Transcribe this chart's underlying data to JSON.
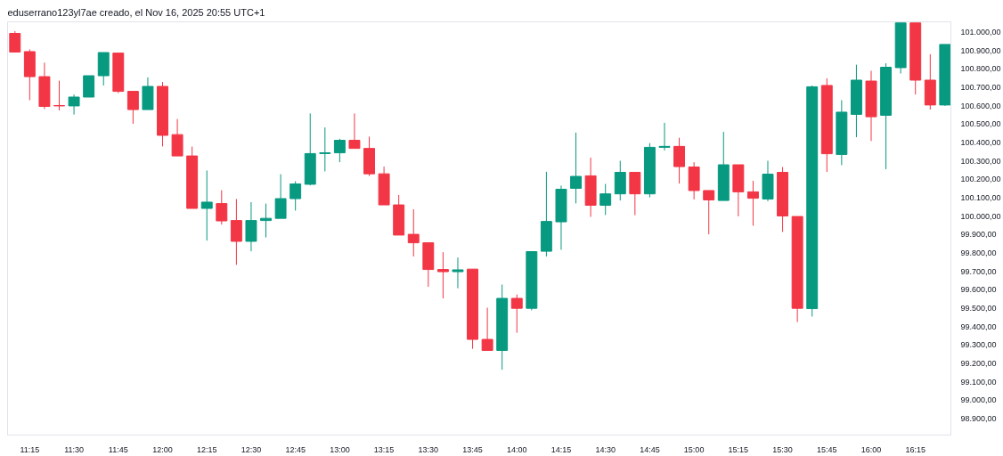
{
  "chart_data": {
    "type": "candlestick",
    "title": "eduserrano123yl7ae creado, el Nov 16, 2025 20:55 UTC+1",
    "categories": [
      null,
      "11:15",
      null,
      null,
      "11:30",
      null,
      null,
      "11:45",
      null,
      null,
      "12:00",
      null,
      null,
      "12:15",
      null,
      null,
      "12:30",
      null,
      null,
      "12:45",
      null,
      null,
      "13:00",
      null,
      null,
      "13:15",
      null,
      null,
      "13:30",
      null,
      null,
      "13:45",
      null,
      null,
      "14:00",
      null,
      null,
      "14:15",
      null,
      null,
      "14:30",
      null,
      null,
      "14:45",
      null,
      null,
      "15:00",
      null,
      null,
      "15:15",
      null,
      null,
      "15:30",
      null,
      null,
      "15:45",
      null,
      null,
      "16:00",
      null,
      null,
      "16:15",
      null,
      null
    ],
    "ohlc": [
      [
        100993,
        101005,
        100889,
        100892
      ],
      [
        100894,
        100906,
        100630,
        100758
      ],
      [
        100758,
        100834,
        100582,
        100596
      ],
      [
        100601,
        100736,
        100574,
        100599
      ],
      [
        100599,
        100661,
        100552,
        100647
      ],
      [
        100647,
        100763,
        100647,
        100763
      ],
      [
        100763,
        100889,
        100710,
        100889
      ],
      [
        100886,
        100886,
        100669,
        100678
      ],
      [
        100678,
        100678,
        100502,
        100579
      ],
      [
        100579,
        100754,
        100579,
        100705
      ],
      [
        100705,
        100729,
        100379,
        100439
      ],
      [
        100443,
        100528,
        100327,
        100327
      ],
      [
        100327,
        100378,
        100042,
        100042
      ],
      [
        100042,
        100248,
        99867,
        100076
      ],
      [
        100068,
        100141,
        99954,
        99974
      ],
      [
        99976,
        100093,
        99735,
        99863
      ],
      [
        99863,
        100076,
        99809,
        99976
      ],
      [
        99976,
        100068,
        99884,
        99988
      ],
      [
        99988,
        100228,
        99988,
        100095
      ],
      [
        100095,
        100190,
        100030,
        100175
      ],
      [
        100173,
        100558,
        100167,
        100340
      ],
      [
        100340,
        100482,
        100243,
        100344
      ],
      [
        100344,
        100420,
        100293,
        100412
      ],
      [
        100412,
        100558,
        100368,
        100368
      ],
      [
        100368,
        100432,
        100218,
        100230
      ],
      [
        100230,
        100269,
        100061,
        100061
      ],
      [
        100061,
        100115,
        99897,
        99897
      ],
      [
        99901,
        100037,
        99781,
        99855
      ],
      [
        99855,
        99855,
        99616,
        99710
      ],
      [
        99710,
        99804,
        99553,
        99698
      ],
      [
        99698,
        99775,
        99608,
        99708
      ],
      [
        99712,
        99712,
        99279,
        99330
      ],
      [
        99330,
        99502,
        99270,
        99270
      ],
      [
        99270,
        99628,
        99165,
        99553
      ],
      [
        99553,
        99574,
        99366,
        99499
      ],
      [
        99499,
        99807,
        99488,
        99807
      ],
      [
        99809,
        100241,
        99781,
        99971
      ],
      [
        99969,
        100166,
        99817,
        100146
      ],
      [
        100151,
        100454,
        100069,
        100216
      ],
      [
        100219,
        100318,
        99996,
        100059
      ],
      [
        100059,
        100175,
        100006,
        100121
      ],
      [
        100121,
        100301,
        100085,
        100238
      ],
      [
        100238,
        100238,
        100005,
        100121
      ],
      [
        100121,
        100397,
        100102,
        100374
      ],
      [
        100374,
        100507,
        100357,
        100379
      ],
      [
        100379,
        100426,
        100177,
        100269
      ],
      [
        100267,
        100293,
        100091,
        100139
      ],
      [
        100139,
        100139,
        99901,
        100088
      ],
      [
        100085,
        100458,
        100085,
        100279
      ],
      [
        100279,
        100279,
        99999,
        100132
      ],
      [
        100132,
        100192,
        99948,
        100097
      ],
      [
        100093,
        100301,
        100081,
        100228
      ],
      [
        100238,
        100267,
        99914,
        100001
      ],
      [
        99998,
        99998,
        99424,
        99499
      ],
      [
        99497,
        100710,
        99454,
        100703
      ],
      [
        100710,
        100749,
        100240,
        100339
      ],
      [
        100335,
        100630,
        100277,
        100565
      ],
      [
        100553,
        100823,
        100429,
        100739
      ],
      [
        100734,
        100790,
        100408,
        100540
      ],
      [
        100548,
        100831,
        100255,
        100809
      ],
      [
        100807,
        101050,
        100775,
        101050
      ],
      [
        101050,
        101050,
        100661,
        100739
      ],
      [
        100739,
        100880,
        100579,
        100604
      ],
      [
        100604,
        100933,
        100599,
        100933
      ]
    ],
    "colors": [
      "#f23645",
      "#f23645",
      "#f23645",
      "#f23645",
      "#089981",
      "#089981",
      "#089981",
      "#f23645",
      "#f23645",
      "#089981",
      "#f23645",
      "#f23645",
      "#f23645",
      "#089981",
      "#f23645",
      "#f23645",
      "#089981",
      "#089981",
      "#089981",
      "#089981",
      "#089981",
      "#089981",
      "#089981",
      "#f23645",
      "#f23645",
      "#f23645",
      "#f23645",
      "#f23645",
      "#f23645",
      "#f23645",
      "#089981",
      "#f23645",
      "#f23645",
      "#089981",
      "#f23645",
      "#089981",
      "#089981",
      "#089981",
      "#089981",
      "#f23645",
      "#089981",
      "#089981",
      "#f23645",
      "#089981",
      "#089981",
      "#f23645",
      "#f23645",
      "#f23645",
      "#089981",
      "#f23645",
      "#f23645",
      "#089981",
      "#f23645",
      "#f23645",
      "#089981",
      "#f23645",
      "#089981",
      "#089981",
      "#f23645",
      "#089981",
      "#089981",
      "#f23645",
      "#f23645",
      "#089981"
    ],
    "ylim": [
      98810,
      101056
    ],
    "yticks": [
      {
        "value": 98900,
        "label": "98.900,00"
      },
      {
        "value": 99000,
        "label": "99.000,00"
      },
      {
        "value": 99100,
        "label": "99.100,00"
      },
      {
        "value": 99200,
        "label": "99.200,00"
      },
      {
        "value": 99300,
        "label": "99.300,00"
      },
      {
        "value": 99400,
        "label": "99.400,00"
      },
      {
        "value": 99500,
        "label": "99.500,00"
      },
      {
        "value": 99600,
        "label": "99.600,00"
      },
      {
        "value": 99700,
        "label": "99.700,00"
      },
      {
        "value": 99800,
        "label": "99.800,00"
      },
      {
        "value": 99900,
        "label": "99.900,00"
      },
      {
        "value": 100000,
        "label": "100.000,00"
      },
      {
        "value": 100100,
        "label": "100.100,00"
      },
      {
        "value": 100200,
        "label": "100.200,00"
      },
      {
        "value": 100300,
        "label": "100.300,00"
      },
      {
        "value": 100400,
        "label": "100.400,00"
      },
      {
        "value": 100500,
        "label": "100.500,00"
      },
      {
        "value": 100600,
        "label": "100.600,00"
      },
      {
        "value": 100700,
        "label": "100.700,00"
      },
      {
        "value": 100800,
        "label": "100.800,00"
      },
      {
        "value": 100900,
        "label": "100.900,00"
      },
      {
        "value": 101000,
        "label": "101.000,00"
      }
    ]
  }
}
